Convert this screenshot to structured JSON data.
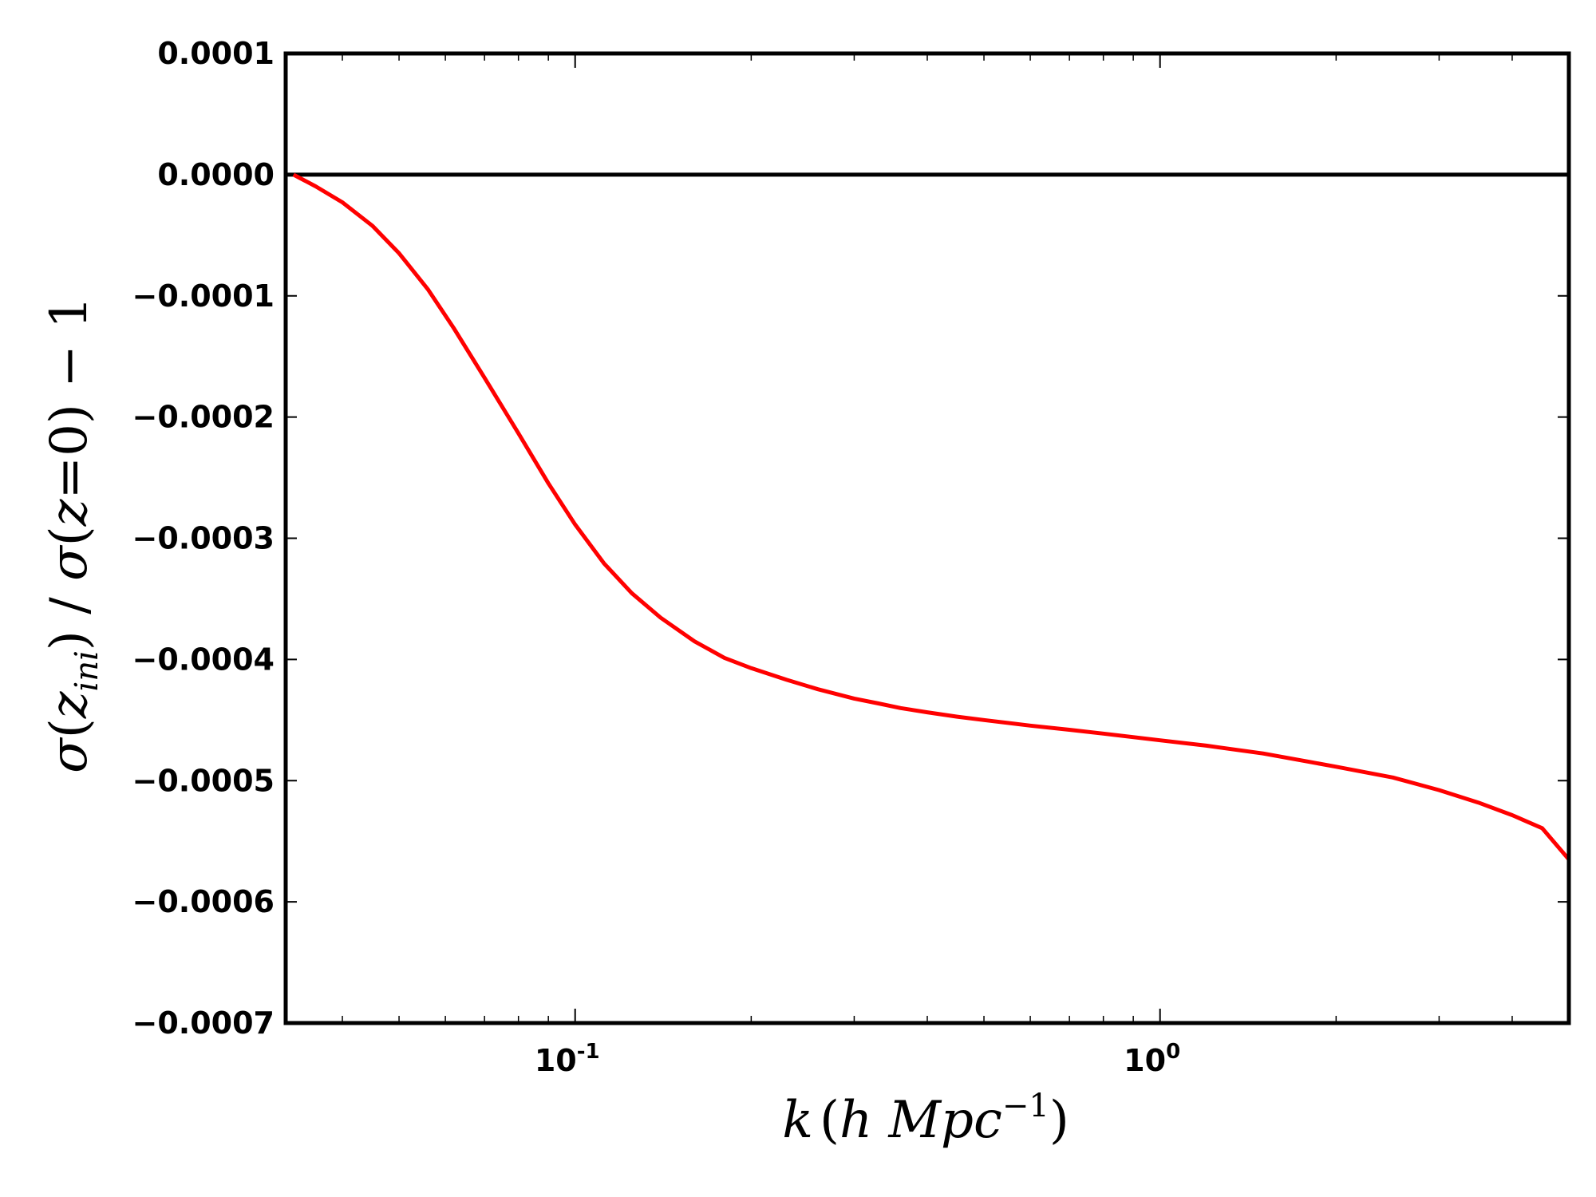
{
  "chart_data": {
    "type": "line",
    "xscale": "log",
    "xlim": [
      0.032,
      5.0
    ],
    "ylim": [
      -0.0007,
      0.0001
    ],
    "xlabel": "k (h Mpc^-1)",
    "ylabel": "σ(z_ini) / σ(z=0) − 1",
    "grid": false,
    "legend": "none",
    "x_ticks": [
      {
        "value": 0.1,
        "base": "10",
        "exp": "-1"
      },
      {
        "value": 1.0,
        "base": "10",
        "exp": "0"
      }
    ],
    "y_ticks": [
      {
        "value": 0.0001,
        "label": "0.0001"
      },
      {
        "value": 0.0,
        "label": "0.0000"
      },
      {
        "value": -0.0001,
        "label": "−0.0001"
      },
      {
        "value": -0.0002,
        "label": "−0.0002"
      },
      {
        "value": -0.0003,
        "label": "−0.0003"
      },
      {
        "value": -0.0004,
        "label": "−0.0004"
      },
      {
        "value": -0.0005,
        "label": "−0.0005"
      },
      {
        "value": -0.0006,
        "label": "−0.0006"
      },
      {
        "value": -0.0007,
        "label": "−0.0007"
      }
    ],
    "reference_line": {
      "y": 0.0,
      "color": "#000000"
    },
    "series": [
      {
        "color": "#ff0000",
        "x": [
          0.033,
          0.036,
          0.04,
          0.045,
          0.05,
          0.056,
          0.062,
          0.07,
          0.08,
          0.09,
          0.1,
          0.112,
          0.125,
          0.14,
          0.16,
          0.18,
          0.2,
          0.23,
          0.26,
          0.3,
          0.33,
          0.36,
          0.4,
          0.45,
          0.5,
          0.6,
          0.7,
          0.8,
          1.0,
          1.2,
          1.5,
          1.8,
          2.0,
          2.5,
          3.0,
          3.5,
          4.0,
          4.5,
          5.0
        ],
        "y": [
          0.0,
          -9.6e-06,
          -2.28e-05,
          -4.21e-05,
          -6.49e-05,
          -9.45e-05,
          -0.0001265,
          -0.0001676,
          -0.0002135,
          -0.0002547,
          -0.0002887,
          -0.0003207,
          -0.0003453,
          -0.0003655,
          -0.0003851,
          -0.0003987,
          -0.0004072,
          -0.0004168,
          -0.0004246,
          -0.0004323,
          -0.0004363,
          -0.0004401,
          -0.0004436,
          -0.0004472,
          -0.00045,
          -0.0004546,
          -0.000458,
          -0.0004612,
          -0.0004667,
          -0.0004711,
          -0.0004776,
          -0.0004845,
          -0.0004885,
          -0.0004974,
          -0.0005078,
          -0.0005181,
          -0.0005285,
          -0.0005392,
          -0.000565
        ]
      }
    ]
  }
}
